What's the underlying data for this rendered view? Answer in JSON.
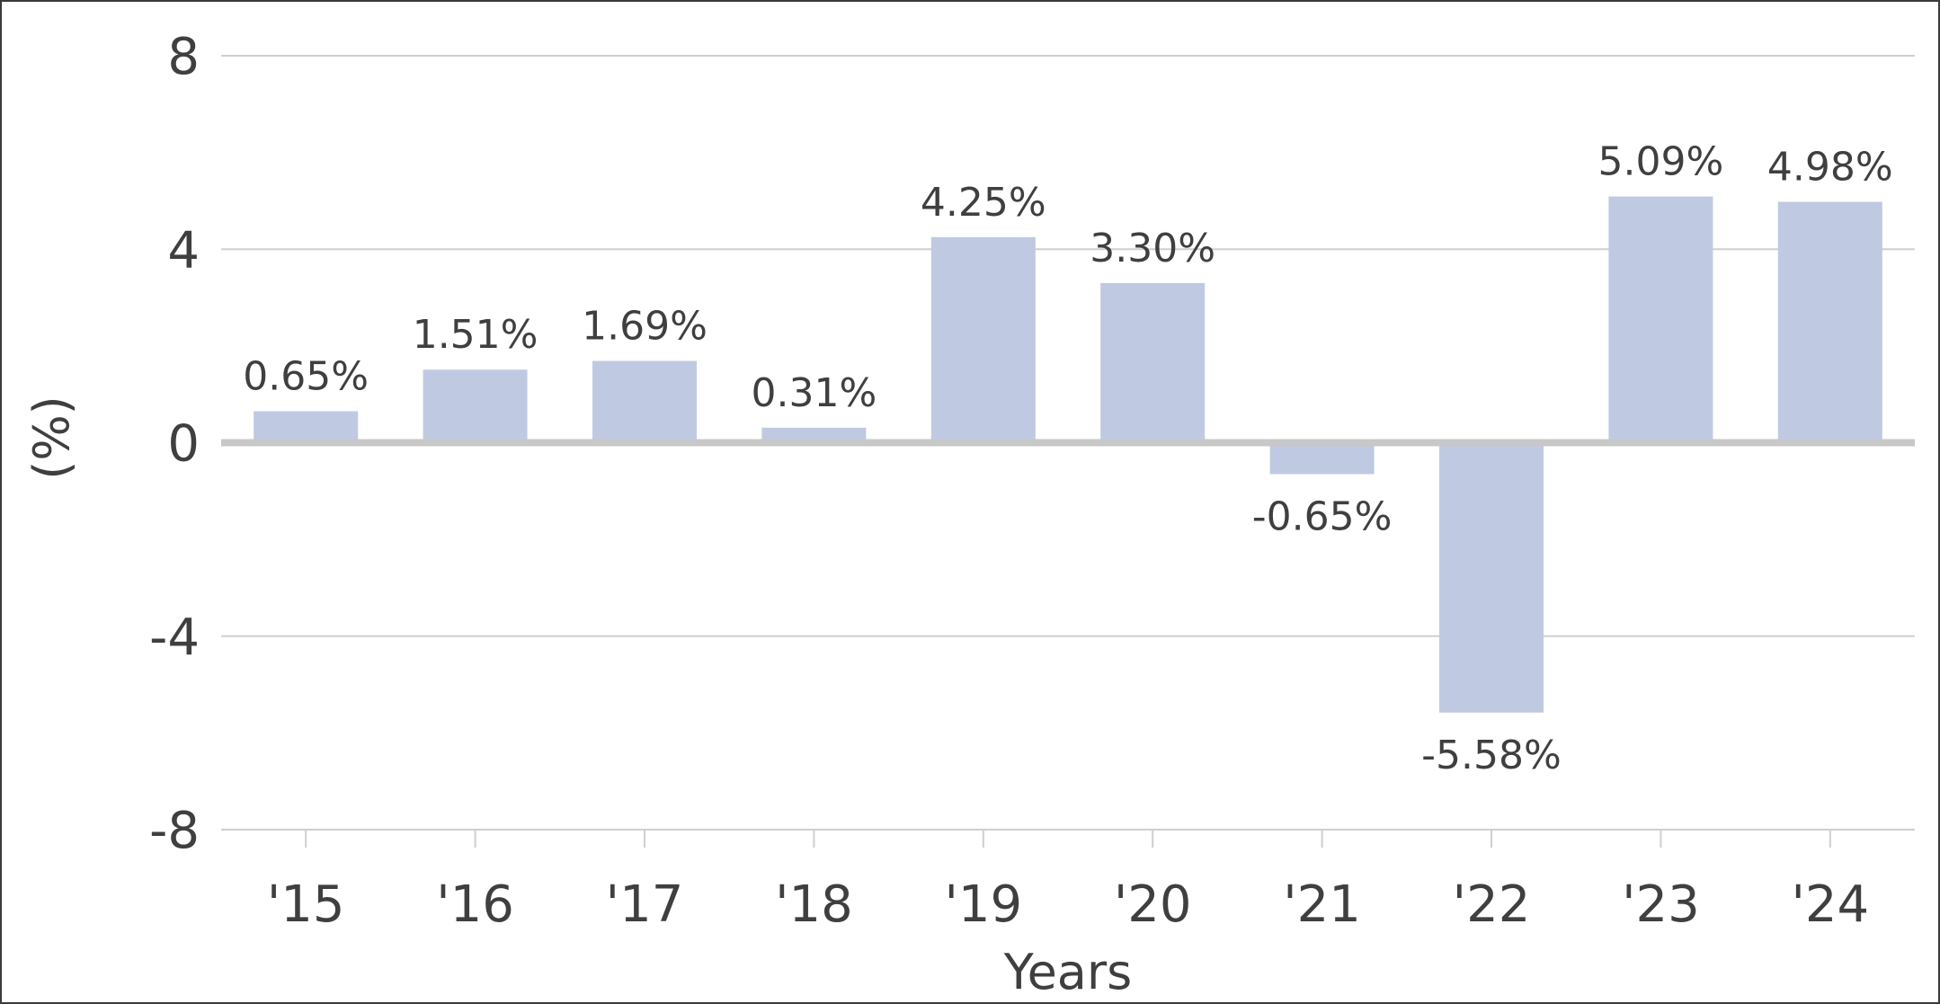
{
  "chart_data": {
    "type": "bar",
    "categories": [
      "'15",
      "'16",
      "'17",
      "'18",
      "'19",
      "'20",
      "'21",
      "'22",
      "'23",
      "'24"
    ],
    "values": [
      0.65,
      1.51,
      1.69,
      0.31,
      4.25,
      3.3,
      -0.65,
      -5.58,
      5.09,
      4.98
    ],
    "value_labels": [
      "0.65%",
      "1.51%",
      "1.69%",
      "0.31%",
      "4.25%",
      "3.30%",
      "-0.65%",
      "-5.58%",
      "5.09%",
      "4.98%"
    ],
    "xlabel": "Years",
    "ylabel": "(%)",
    "ylim": [
      -8,
      8
    ],
    "yticks": [
      8,
      4,
      0,
      -4,
      -8
    ],
    "ytick_labels": [
      "8",
      "4",
      "0",
      "-4",
      "-8"
    ],
    "grid": true,
    "colors": {
      "bar": "#bfcae2",
      "grid": "#cfcfcf",
      "zero_line": "#c8c8c8",
      "text": "#3f3f3f"
    }
  }
}
